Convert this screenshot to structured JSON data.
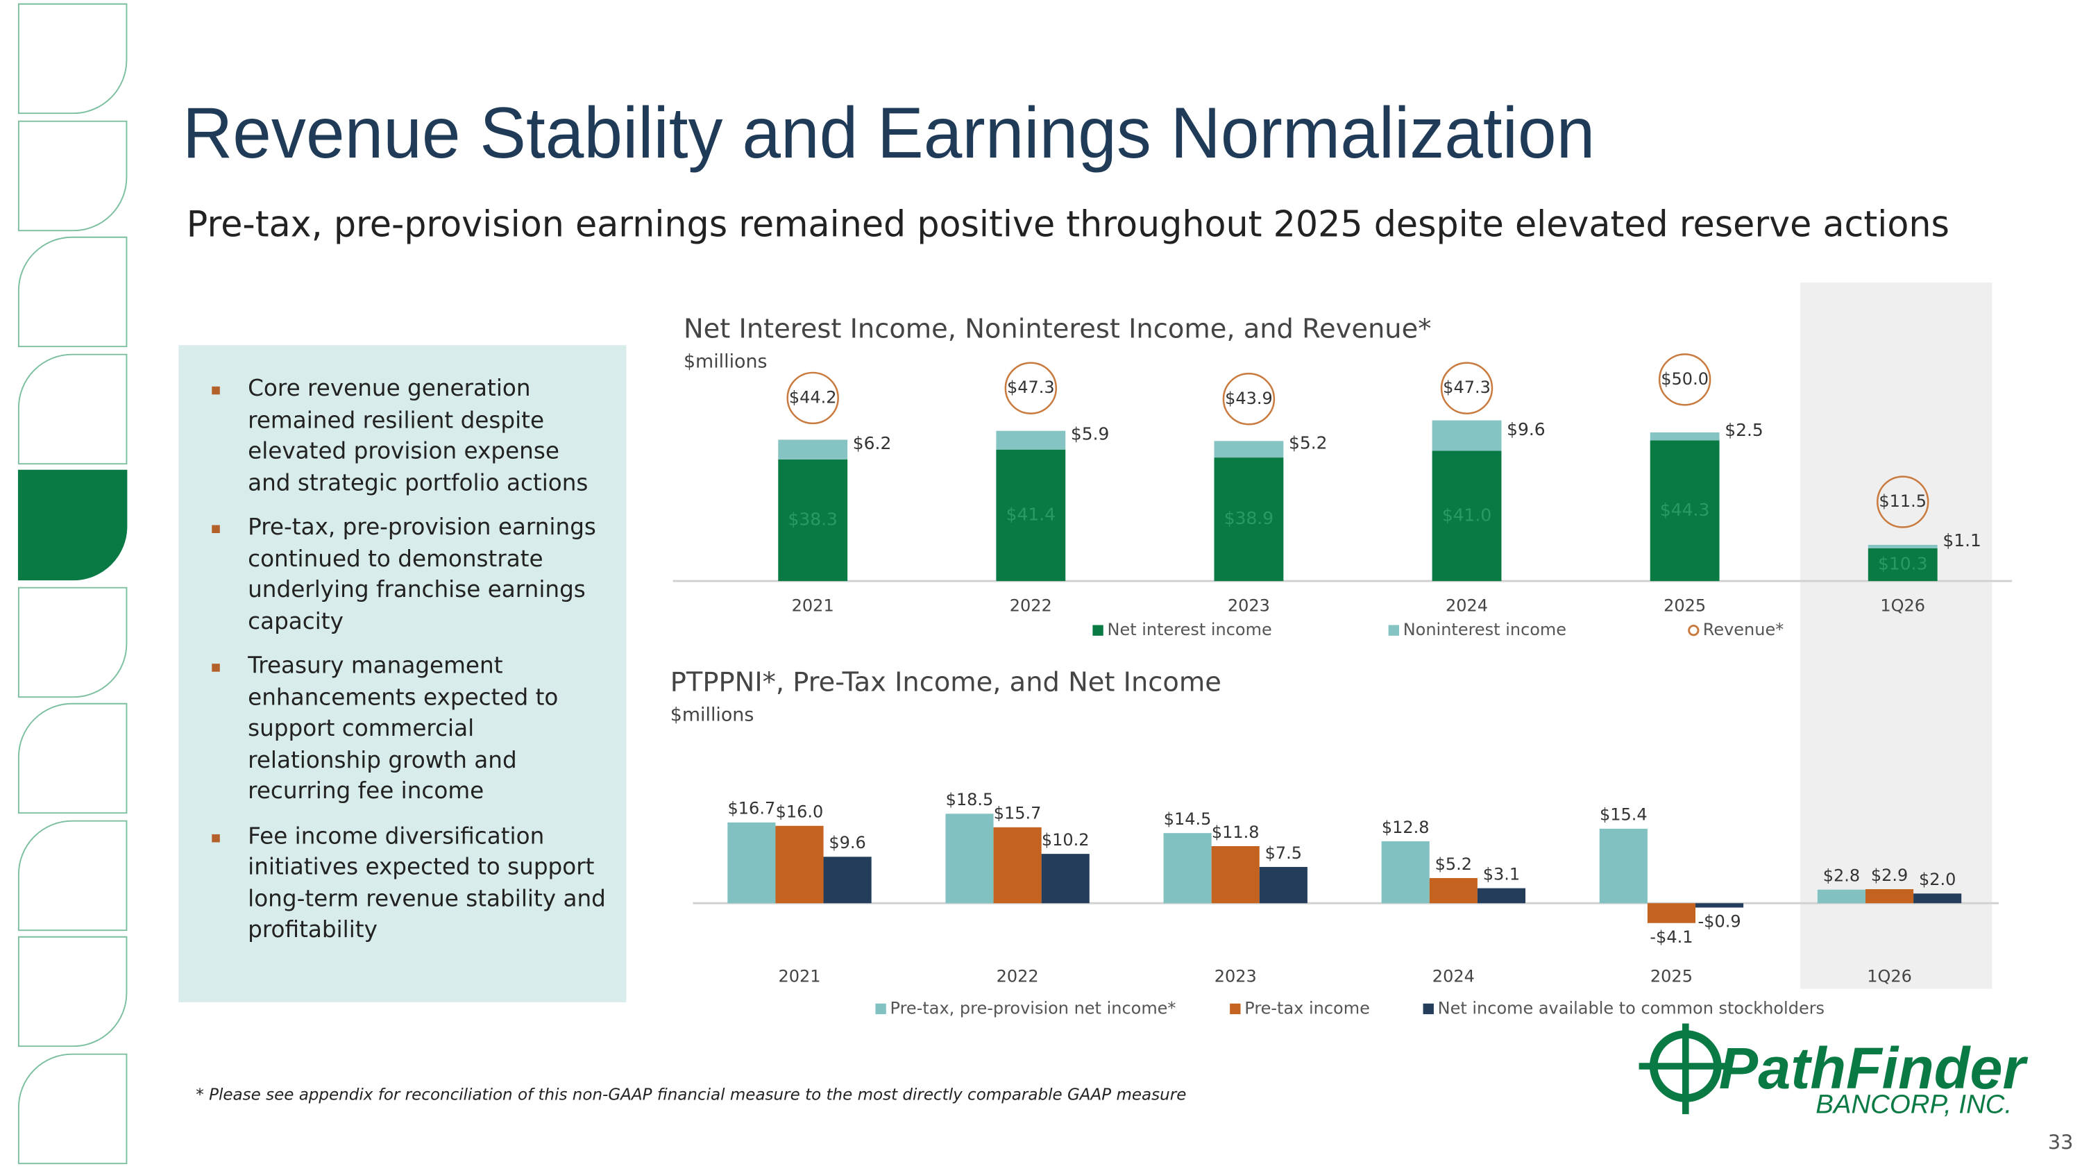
{
  "title": "Revenue Stability and Earnings Normalization",
  "subtitle": "Pre-tax, pre-provision earnings remained positive throughout 2025 despite elevated reserve actions",
  "bullets": [
    "Core revenue generation remained resilient despite elevated provision expense and strategic portfolio actions",
    "Pre-tax, pre-provision earnings continued to demonstrate underlying franchise earnings capacity",
    "Treasury management enhancements expected to support commercial relationship growth and recurring fee income",
    "Fee income diversification initiatives expected to support long-term revenue stability and profitability"
  ],
  "footnote": "* Please see appendix for reconciliation of this non-GAAP financial measure to the most directly comparable GAAP measure",
  "logo": {
    "name": "PathFinder",
    "tagline": "BANCORP, INC."
  },
  "page_number": "33",
  "chart_data": [
    {
      "type": "bar",
      "stacked": true,
      "title": "Net Interest Income, Noninterest Income, and Revenue*",
      "subtitle": "$millions",
      "categories": [
        "2021",
        "2022",
        "2023",
        "2024",
        "2025",
        "1Q26"
      ],
      "ylim": [
        0,
        60
      ],
      "series": [
        {
          "name": "Net interest income",
          "color": "#0a7a45",
          "values": [
            38.3,
            41.4,
            38.9,
            41.0,
            44.3,
            10.3
          ],
          "value_labels": [
            "$38.3",
            "$41.4",
            "$38.9",
            "$41.0",
            "$44.3",
            "$10.3"
          ]
        },
        {
          "name": "Noninterest income",
          "color": "#86c4c4",
          "values": [
            6.2,
            5.9,
            5.2,
            9.6,
            2.5,
            1.1
          ],
          "value_labels": [
            "$6.2",
            "$5.9",
            "$5.2",
            "$9.6",
            "$2.5",
            "$1.1"
          ]
        }
      ],
      "totals": {
        "name": "Revenue*",
        "color": "#c97a3e",
        "values": [
          44.2,
          47.3,
          43.9,
          47.3,
          50.0,
          11.5
        ],
        "value_labels": [
          "$44.2",
          "$47.3",
          "$43.9",
          "$47.3",
          "$50.0",
          "$11.5"
        ]
      }
    },
    {
      "type": "bar",
      "stacked": false,
      "title": "PTPPNI*, Pre-Tax Income, and Net Income",
      "subtitle": "$millions",
      "categories": [
        "2021",
        "2022",
        "2023",
        "2024",
        "2025",
        "1Q26"
      ],
      "ylim": [
        -10,
        25
      ],
      "series": [
        {
          "name": "Pre-tax, pre-provision net income*",
          "color": "#82c1c1",
          "values": [
            16.7,
            18.5,
            14.5,
            12.8,
            15.4,
            2.8
          ],
          "value_labels": [
            "$16.7",
            "$18.5",
            "$14.5",
            "$12.8",
            "$15.4",
            "$2.8"
          ]
        },
        {
          "name": "Pre-tax income",
          "color": "#c4621f",
          "values": [
            16.0,
            15.7,
            11.8,
            5.2,
            -4.1,
            2.9
          ],
          "value_labels": [
            "$16.0",
            "$15.7",
            "$11.8",
            "$5.2",
            "-$4.1",
            "$2.9"
          ]
        },
        {
          "name": "Net income available to common stockholders",
          "color": "#233d5a",
          "values": [
            9.6,
            10.2,
            7.5,
            3.1,
            -0.9,
            2.0
          ],
          "value_labels": [
            "$9.6",
            "$10.2",
            "$7.5",
            "$3.1",
            "-$0.9",
            "$2.0"
          ]
        }
      ]
    }
  ]
}
